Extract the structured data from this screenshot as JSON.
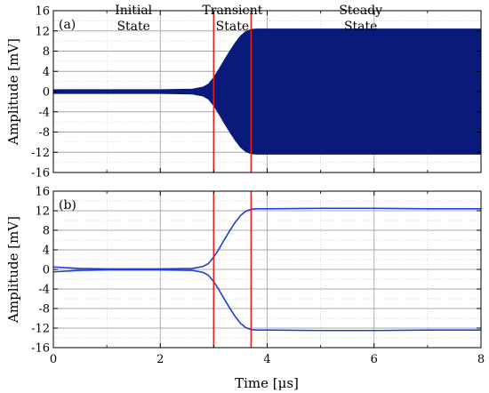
{
  "chart_data": [
    {
      "panel": "a",
      "type": "line",
      "panel_label": "(a)",
      "title": "",
      "xlabel": "",
      "ylabel": "Amplitude [mV]",
      "xlim": [
        0,
        8
      ],
      "ylim": [
        -16,
        16
      ],
      "x_ticks": [
        0,
        2,
        4,
        6,
        8
      ],
      "y_ticks": [
        16,
        12,
        8,
        4,
        0,
        -4,
        -8,
        -12,
        -16
      ],
      "y_tick_labels": [
        "16",
        "12",
        "8",
        "4",
        "0",
        "-4",
        "-8",
        "-12",
        "-16"
      ],
      "grid": true,
      "state_labels": [
        {
          "line1": "Initial",
          "line2": "State",
          "x": 1.5
        },
        {
          "line1": "Transient",
          "line2": "State",
          "x": 3.35
        },
        {
          "line1": "Steady",
          "line2": "State",
          "x": 5.75
        }
      ],
      "markers": [
        3.0,
        3.7
      ],
      "marker_color": "#e8201c",
      "series": [
        {
          "kind": "oscillation_envelope",
          "color": "#0a1a7a",
          "x": [
            0,
            1,
            2,
            2.6,
            2.8,
            2.9,
            3.0,
            3.1,
            3.2,
            3.3,
            3.4,
            3.5,
            3.6,
            3.7,
            3.8,
            4,
            5,
            6,
            7,
            8
          ],
          "upper": [
            0.4,
            0.4,
            0.4,
            0.5,
            0.9,
            1.5,
            2.8,
            4.5,
            6.3,
            8.0,
            9.6,
            11.0,
            11.9,
            12.3,
            12.4,
            12.4,
            12.4,
            12.4,
            12.4,
            12.4
          ],
          "lower": [
            -0.4,
            -0.4,
            -0.4,
            -0.5,
            -0.9,
            -1.5,
            -2.8,
            -4.5,
            -6.3,
            -8.0,
            -9.6,
            -11.0,
            -11.9,
            -12.3,
            -12.4,
            -12.4,
            -12.4,
            -12.4,
            -12.4,
            -12.4
          ]
        }
      ]
    },
    {
      "panel": "b",
      "type": "line",
      "panel_label": "(b)",
      "title": "",
      "xlabel": "Time [μs]",
      "ylabel": "Amplitude [mV]",
      "xlim": [
        0,
        8
      ],
      "ylim": [
        -16,
        16
      ],
      "x_ticks": [
        0,
        2,
        4,
        6,
        8
      ],
      "x_tick_labels": [
        "0",
        "2",
        "4",
        "6",
        "8"
      ],
      "y_ticks": [
        16,
        12,
        8,
        4,
        0,
        -4,
        -8,
        -12,
        -16
      ],
      "y_tick_labels": [
        "16",
        "12",
        "8",
        "4",
        "0",
        "-4",
        "-8",
        "-12",
        "-16"
      ],
      "grid": true,
      "markers": [
        3.0,
        3.7
      ],
      "marker_color": "#e8201c",
      "series": [
        {
          "kind": "envelope_line",
          "color": "#1f3fd6",
          "x": [
            0,
            0.5,
            1,
            2,
            2.6,
            2.8,
            2.9,
            3.0,
            3.1,
            3.2,
            3.3,
            3.4,
            3.5,
            3.6,
            3.7,
            3.8,
            4,
            5,
            6,
            7,
            8
          ],
          "y": [
            0.5,
            0.2,
            0.1,
            0.1,
            0.2,
            0.6,
            1.2,
            2.5,
            4.2,
            6.1,
            7.9,
            9.6,
            11.0,
            11.9,
            12.3,
            12.4,
            12.4,
            12.5,
            12.5,
            12.4,
            12.4
          ]
        },
        {
          "kind": "envelope_line",
          "color": "#1f3fd6",
          "x": [
            0,
            0.5,
            1,
            2,
            2.6,
            2.8,
            2.9,
            3.0,
            3.1,
            3.2,
            3.3,
            3.4,
            3.5,
            3.6,
            3.7,
            3.8,
            4,
            5,
            6,
            7,
            8
          ],
          "y": [
            -0.5,
            -0.2,
            -0.1,
            -0.1,
            -0.2,
            -0.6,
            -1.2,
            -2.5,
            -4.2,
            -6.1,
            -7.9,
            -9.6,
            -11.0,
            -11.9,
            -12.3,
            -12.4,
            -12.4,
            -12.5,
            -12.5,
            -12.4,
            -12.4
          ]
        }
      ]
    }
  ]
}
